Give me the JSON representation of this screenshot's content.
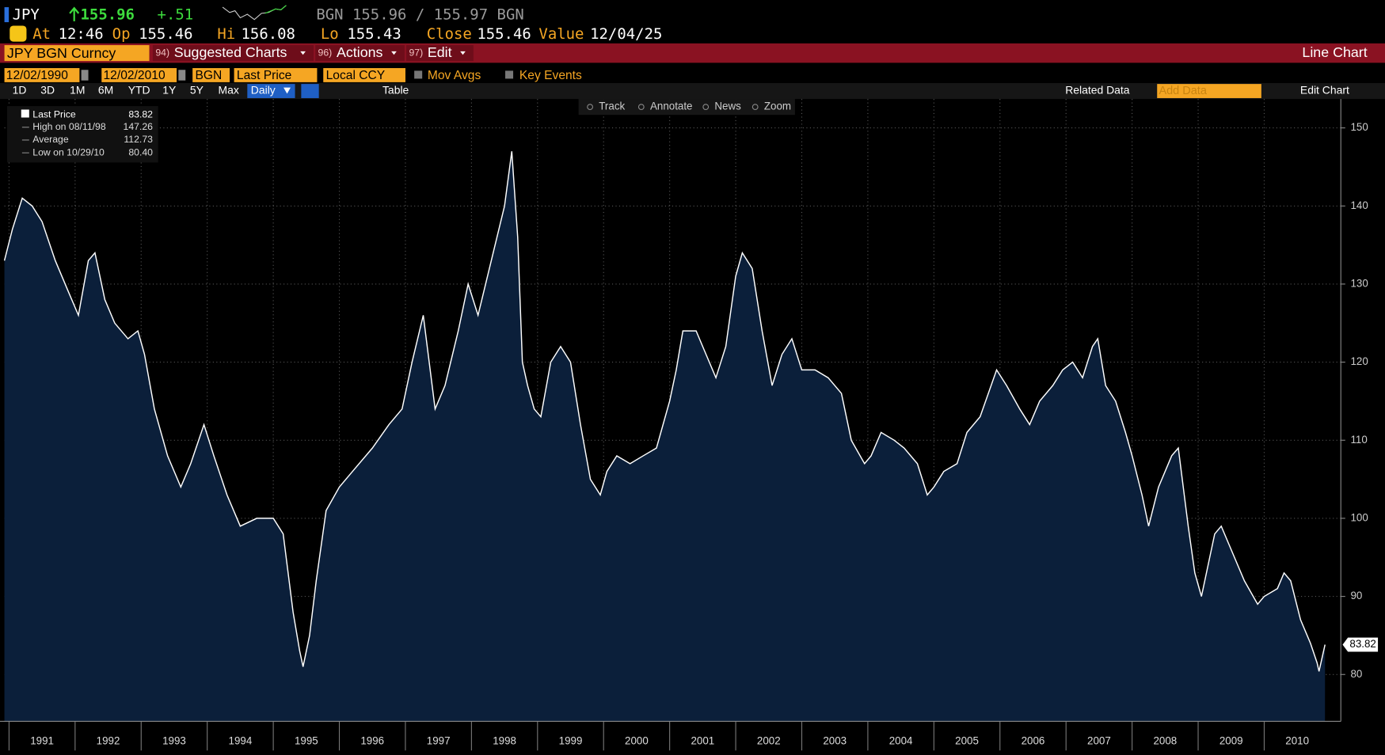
{
  "header": {
    "ticker": "JPY",
    "last": "155.96",
    "change": "+.51",
    "quote": "BGN 155.96 / 155.97 BGN",
    "fields": [
      {
        "label": "At",
        "value": "12:46"
      },
      {
        "label": "Op",
        "value": "155.46"
      },
      {
        "label": "Hi",
        "value": "156.08"
      },
      {
        "label": "Lo",
        "value": "155.43"
      },
      {
        "label": "Close",
        "value": "155.46"
      },
      {
        "label": "Value",
        "value": "12/04/25"
      }
    ]
  },
  "menu": {
    "security": "JPY BGN Curncy",
    "items": [
      {
        "num": "94)",
        "label": "Suggested Charts"
      },
      {
        "num": "96)",
        "label": "Actions"
      },
      {
        "num": "97)",
        "label": "Edit"
      }
    ],
    "view": "Line Chart"
  },
  "toolbar": {
    "start": "12/02/1990",
    "end": "12/02/2010",
    "source": "BGN",
    "field": "Last Price",
    "currency": "Local CCY",
    "options": [
      "Mov Avgs",
      "Key Events"
    ]
  },
  "periods": [
    "1D",
    "3D",
    "1M",
    "6M",
    "YTD",
    "1Y",
    "5Y",
    "Max"
  ],
  "frequency": "Daily",
  "table": "Table",
  "related": "Related Data",
  "add_data": "Add Data",
  "edit_chart": "Edit Chart",
  "chart_tools": [
    "Track",
    "Annotate",
    "News",
    "Zoom"
  ],
  "legend": [
    {
      "label": "High on 08/11/98",
      "value": "147.26"
    },
    {
      "label": "Average",
      "value": "112.73"
    },
    {
      "label": "Low on 10/29/10",
      "value": "80.40"
    }
  ],
  "chart_data": {
    "type": "line",
    "x": [
      1990.93,
      1991.05,
      1991.2,
      1991.35,
      1991.5,
      1991.7,
      1991.9,
      1992.05,
      1992.2,
      1992.3,
      1992.45,
      1992.6,
      1992.8,
      1992.95,
      1993.05,
      1993.2,
      1993.4,
      1993.6,
      1993.75,
      1993.95,
      1994.1,
      1994.3,
      1994.5,
      1994.75,
      1995.0,
      1995.15,
      1995.3,
      1995.4,
      1995.45,
      1995.55,
      1995.65,
      1995.8,
      1996.0,
      1996.2,
      1996.5,
      1996.75,
      1996.95,
      1997.1,
      1997.27,
      1997.45,
      1997.6,
      1997.8,
      1997.95,
      1998.1,
      1998.3,
      1998.5,
      1998.61,
      1998.7,
      1998.77,
      1998.85,
      1998.95,
      1999.05,
      1999.2,
      1999.35,
      1999.5,
      1999.65,
      1999.8,
      1999.95,
      2000.05,
      2000.2,
      2000.4,
      2000.6,
      2000.8,
      2001.0,
      2001.1,
      2001.2,
      2001.4,
      2001.55,
      2001.7,
      2001.85,
      2002.0,
      2002.1,
      2002.25,
      2002.4,
      2002.55,
      2002.7,
      2002.85,
      2003.0,
      2003.2,
      2003.4,
      2003.6,
      2003.75,
      2003.95,
      2004.05,
      2004.2,
      2004.4,
      2004.55,
      2004.75,
      2004.9,
      2005.0,
      2005.15,
      2005.35,
      2005.5,
      2005.7,
      2005.95,
      2006.1,
      2006.3,
      2006.45,
      2006.6,
      2006.8,
      2006.95,
      2007.1,
      2007.25,
      2007.4,
      2007.48,
      2007.6,
      2007.75,
      2007.9,
      2008.0,
      2008.15,
      2008.25,
      2008.4,
      2008.6,
      2008.7,
      2008.85,
      2008.95,
      2009.05,
      2009.15,
      2009.25,
      2009.35,
      2009.5,
      2009.7,
      2009.9,
      2010.0,
      2010.2,
      2010.3,
      2010.4,
      2010.55,
      2010.7,
      2010.8,
      2010.83,
      2010.92
    ],
    "series": [
      {
        "name": "Last Price",
        "color": "#ffffff",
        "fill": "#0b1f3a",
        "values": [
          133,
          137,
          141,
          140,
          138,
          133,
          129,
          126,
          133,
          134,
          128,
          125,
          123,
          124,
          121,
          114,
          108,
          104,
          107,
          112,
          108,
          103,
          99,
          100,
          100,
          98,
          88,
          83,
          81,
          85,
          92,
          101,
          104,
          106,
          109,
          112,
          114,
          120,
          126,
          114,
          117,
          124,
          130,
          126,
          133,
          140,
          147,
          136,
          120,
          117,
          114,
          113,
          120,
          122,
          120,
          112,
          105,
          103,
          106,
          108,
          107,
          108,
          109,
          115,
          119,
          124,
          124,
          121,
          118,
          122,
          131,
          134,
          132,
          124,
          117,
          121,
          123,
          119,
          119,
          118,
          116,
          110,
          107,
          108,
          111,
          110,
          109,
          107,
          103,
          104,
          106,
          107,
          111,
          113,
          119,
          117,
          114,
          112,
          115,
          117,
          119,
          120,
          118,
          122,
          123,
          117,
          115,
          111,
          108,
          103,
          99,
          104,
          108,
          109,
          99,
          93,
          90,
          94,
          98,
          99,
          96,
          92,
          89,
          90,
          91,
          93,
          92,
          87,
          84,
          81.5,
          80.4,
          83.82
        ]
      }
    ],
    "xlim": [
      1990.93,
      2011.16
    ],
    "xticks": [
      1991,
      1992,
      1993,
      1994,
      1995,
      1996,
      1997,
      1998,
      1999,
      2000,
      2001,
      2002,
      2003,
      2004,
      2005,
      2006,
      2007,
      2008,
      2009,
      2010
    ],
    "ylim": [
      74,
      153.7
    ],
    "yticks": [
      80,
      90,
      100,
      110,
      120,
      130,
      140,
      150
    ],
    "grid": true
  }
}
